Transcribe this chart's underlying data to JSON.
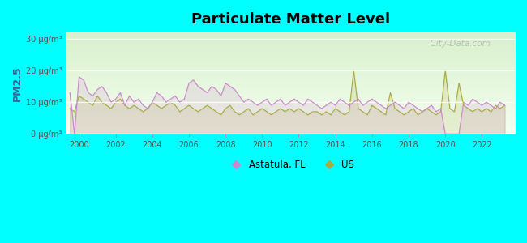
{
  "title": "Particulate Matter Level",
  "ylabel": "PM2.5",
  "background_outer": "#00FFFF",
  "ylim": [
    0,
    32
  ],
  "yticks": [
    0,
    10,
    20,
    30
  ],
  "ytick_labels": [
    "0 μg/m³",
    "10 μg/m³",
    "20 μg/m³",
    "30 μg/m³"
  ],
  "xmin": 1999.3,
  "xmax": 2023.8,
  "xticks": [
    2000,
    2002,
    2004,
    2006,
    2008,
    2010,
    2012,
    2014,
    2016,
    2018,
    2020,
    2022
  ],
  "color_astatula": "#cc88cc",
  "color_us": "#aaaa44",
  "legend_labels": [
    "Astatula, FL",
    "US"
  ],
  "watermark": "  City-Data.com",
  "astatula_x": [
    1999.5,
    1999.75,
    2000.0,
    2000.25,
    2000.5,
    2000.75,
    2001.0,
    2001.25,
    2001.5,
    2001.75,
    2002.0,
    2002.25,
    2002.5,
    2002.75,
    2003.0,
    2003.25,
    2003.5,
    2003.75,
    2004.0,
    2004.25,
    2004.5,
    2004.75,
    2005.0,
    2005.25,
    2005.5,
    2005.75,
    2006.0,
    2006.25,
    2006.5,
    2006.75,
    2007.0,
    2007.25,
    2007.5,
    2007.75,
    2008.0,
    2008.25,
    2008.5,
    2008.75,
    2009.0,
    2009.25,
    2009.5,
    2009.75,
    2010.0,
    2010.25,
    2010.5,
    2010.75,
    2011.0,
    2011.25,
    2011.5,
    2011.75,
    2012.0,
    2012.25,
    2012.5,
    2012.75,
    2013.0,
    2013.25,
    2013.5,
    2013.75,
    2014.0,
    2014.25,
    2014.5,
    2014.75,
    2015.0,
    2015.25,
    2015.5,
    2015.75,
    2016.0,
    2016.25,
    2016.5,
    2016.75,
    2017.0,
    2017.25,
    2017.5,
    2017.75,
    2018.0,
    2018.25,
    2018.5,
    2018.75,
    2019.0,
    2019.25,
    2019.5,
    2019.75,
    2020.0,
    2020.25,
    2020.5,
    2020.75,
    2021.0,
    2021.25,
    2021.5,
    2021.75,
    2022.0,
    2022.25,
    2022.5,
    2022.75,
    2023.0,
    2023.25
  ],
  "astatula_y": [
    13,
    0,
    18,
    17,
    13,
    12,
    14,
    15,
    13,
    10,
    11,
    13,
    9,
    12,
    10,
    11,
    9,
    8,
    10,
    13,
    12,
    10,
    11,
    12,
    10,
    11,
    16,
    17,
    15,
    14,
    13,
    15,
    14,
    12,
    16,
    15,
    14,
    12,
    10,
    11,
    10,
    9,
    10,
    11,
    9,
    10,
    11,
    9,
    10,
    11,
    10,
    9,
    11,
    10,
    9,
    8,
    9,
    10,
    9,
    11,
    10,
    9,
    10,
    11,
    9,
    10,
    11,
    10,
    9,
    8,
    9,
    10,
    9,
    8,
    10,
    9,
    8,
    7,
    8,
    9,
    7,
    8,
    0,
    0,
    0,
    0,
    10,
    9,
    11,
    10,
    9,
    10,
    9,
    8,
    10,
    9
  ],
  "us_x": [
    1999.5,
    1999.75,
    2000.0,
    2000.25,
    2000.5,
    2000.75,
    2001.0,
    2001.25,
    2001.5,
    2001.75,
    2002.0,
    2002.25,
    2002.5,
    2002.75,
    2003.0,
    2003.25,
    2003.5,
    2003.75,
    2004.0,
    2004.25,
    2004.5,
    2004.75,
    2005.0,
    2005.25,
    2005.5,
    2005.75,
    2006.0,
    2006.25,
    2006.5,
    2006.75,
    2007.0,
    2007.25,
    2007.5,
    2007.75,
    2008.0,
    2008.25,
    2008.5,
    2008.75,
    2009.0,
    2009.25,
    2009.5,
    2009.75,
    2010.0,
    2010.25,
    2010.5,
    2010.75,
    2011.0,
    2011.25,
    2011.5,
    2011.75,
    2012.0,
    2012.25,
    2012.5,
    2012.75,
    2013.0,
    2013.25,
    2013.5,
    2013.75,
    2014.0,
    2014.25,
    2014.5,
    2014.75,
    2015.0,
    2015.25,
    2015.5,
    2015.75,
    2016.0,
    2016.25,
    2016.5,
    2016.75,
    2017.0,
    2017.25,
    2017.5,
    2017.75,
    2018.0,
    2018.25,
    2018.5,
    2018.75,
    2019.0,
    2019.25,
    2019.5,
    2019.75,
    2020.0,
    2020.25,
    2020.5,
    2020.75,
    2021.0,
    2021.25,
    2021.5,
    2021.75,
    2022.0,
    2022.25,
    2022.5,
    2022.75,
    2023.0,
    2023.25
  ],
  "us_y": [
    8,
    7,
    12,
    11,
    10,
    9,
    12,
    10,
    9,
    8,
    10,
    11,
    9,
    8,
    9,
    8,
    7,
    8,
    10,
    9,
    8,
    9,
    10,
    9,
    7,
    8,
    9,
    8,
    7,
    8,
    9,
    8,
    7,
    6,
    8,
    9,
    7,
    6,
    7,
    8,
    6,
    7,
    8,
    7,
    6,
    7,
    8,
    7,
    8,
    7,
    8,
    7,
    6,
    7,
    7,
    6,
    7,
    6,
    8,
    7,
    6,
    7,
    20,
    8,
    7,
    6,
    9,
    8,
    7,
    6,
    13,
    8,
    7,
    6,
    7,
    8,
    6,
    7,
    8,
    7,
    6,
    7,
    20,
    8,
    7,
    16,
    9,
    8,
    7,
    8,
    7,
    8,
    7,
    9,
    8,
    9
  ]
}
